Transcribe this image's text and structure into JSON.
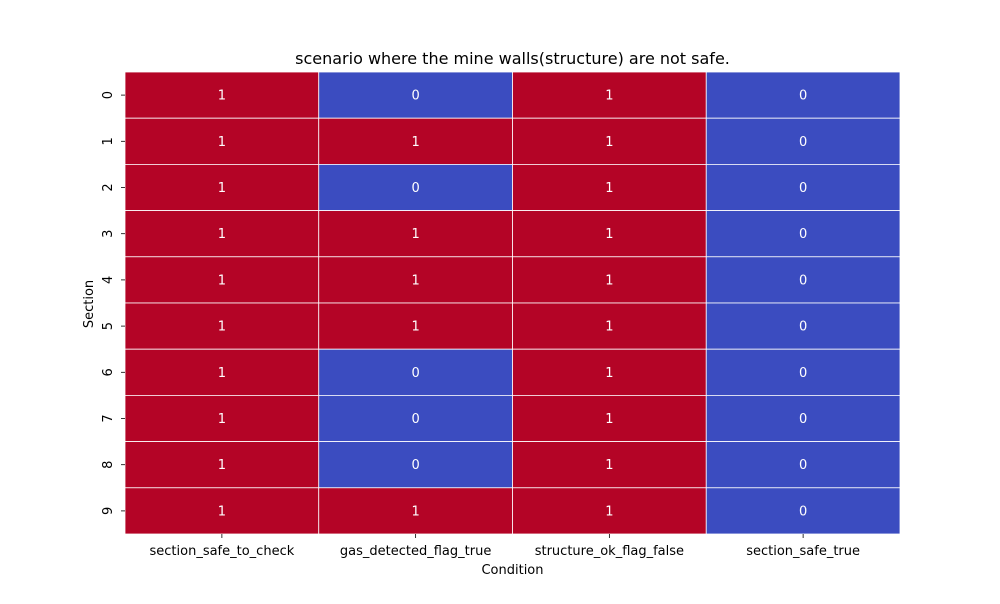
{
  "chart_data": {
    "type": "heatmap",
    "title": "scenario where the mine walls(structure) are not safe.",
    "xlabel": "Condition",
    "ylabel": "Section",
    "x_categories": [
      "section_safe_to_check",
      "gas_detected_flag_true",
      "structure_ok_flag_false",
      "section_safe_true"
    ],
    "y_categories": [
      "0",
      "1",
      "2",
      "3",
      "4",
      "5",
      "6",
      "7",
      "8",
      "9"
    ],
    "values": [
      [
        1,
        0,
        1,
        0
      ],
      [
        1,
        1,
        1,
        0
      ],
      [
        1,
        0,
        1,
        0
      ],
      [
        1,
        1,
        1,
        0
      ],
      [
        1,
        1,
        1,
        0
      ],
      [
        1,
        1,
        1,
        0
      ],
      [
        1,
        0,
        1,
        0
      ],
      [
        1,
        0,
        1,
        0
      ],
      [
        1,
        0,
        1,
        0
      ],
      [
        1,
        1,
        1,
        0
      ]
    ],
    "colormap": "coolwarm",
    "colors": {
      "high": "#b40426",
      "low": "#3b4cc0",
      "cell_border": "#ffffff",
      "annotation_text": "#ffffff"
    },
    "colorbar": false,
    "annotated": true
  }
}
